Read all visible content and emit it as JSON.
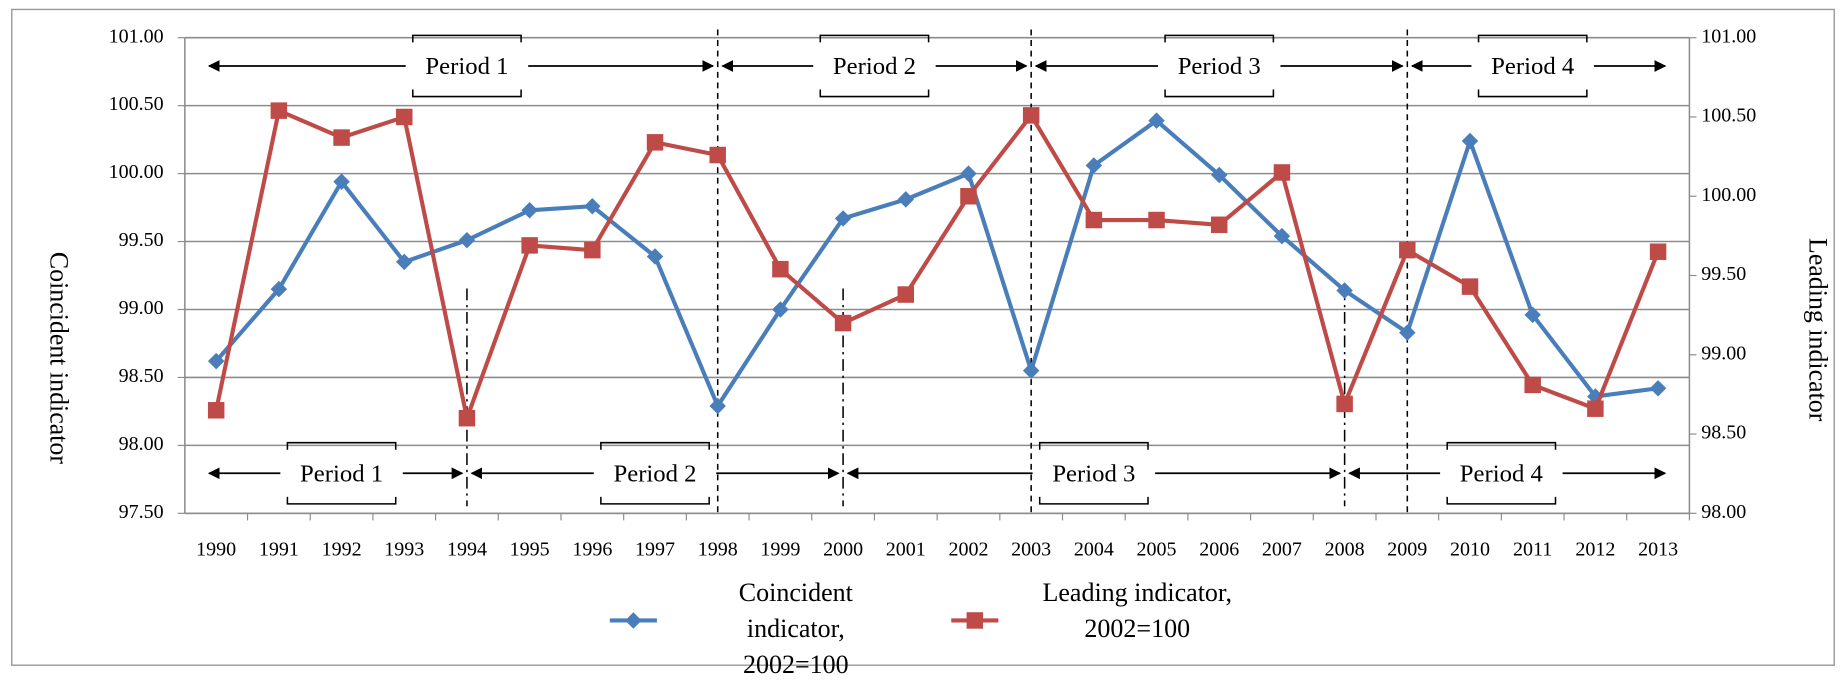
{
  "chart_data": {
    "type": "line",
    "categories": [
      "1990",
      "1991",
      "1992",
      "1993",
      "1994",
      "1995",
      "1996",
      "1997",
      "1998",
      "1999",
      "2000",
      "2001",
      "2002",
      "2003",
      "2004",
      "2005",
      "2006",
      "2007",
      "2008",
      "2009",
      "2010",
      "2011",
      "2012",
      "2013"
    ],
    "series": [
      {
        "name": "Coincident indicator, 2002=100",
        "color": "#4a7ebb",
        "marker": "diamond",
        "axis": "y",
        "values": [
          98.62,
          99.15,
          99.94,
          99.35,
          99.51,
          99.73,
          99.76,
          99.39,
          98.29,
          99.0,
          99.67,
          99.81,
          100.0,
          98.55,
          100.06,
          100.39,
          99.99,
          99.54,
          99.14,
          98.83,
          100.24,
          98.96,
          98.36,
          98.42
        ]
      },
      {
        "name": "Leading indicator, 2002=100",
        "color": "#be4b48",
        "marker": "square",
        "axis": "y2",
        "values": [
          98.65,
          100.54,
          100.37,
          100.5,
          98.6,
          99.69,
          99.66,
          100.34,
          100.26,
          99.54,
          99.2,
          99.38,
          100.0,
          100.51,
          99.85,
          99.85,
          99.82,
          100.15,
          98.69,
          99.66,
          99.43,
          98.81,
          98.66,
          99.65
        ]
      }
    ],
    "ylabel": "Coincident indicator",
    "y2label": "Leading  indicator",
    "ylim": [
      97.5,
      101
    ],
    "yticks": [
      {
        "value": 97.5,
        "label": "97.50"
      },
      {
        "value": 98,
        "label": "98.00"
      },
      {
        "value": 98.5,
        "label": "98.50"
      },
      {
        "value": 99,
        "label": "99.00"
      },
      {
        "value": 99.5,
        "label": "99.50"
      },
      {
        "value": 100,
        "label": "100.00"
      },
      {
        "value": 100.5,
        "label": "100.50"
      },
      {
        "value": 101,
        "label": "101.00"
      }
    ],
    "y2lim": [
      98,
      101
    ],
    "y2ticks": [
      {
        "value": 98,
        "label": "98.00"
      },
      {
        "value": 98.5,
        "label": "98.50"
      },
      {
        "value": 99,
        "label": "99.00"
      },
      {
        "value": 99.5,
        "label": "99.50"
      },
      {
        "value": 100,
        "label": "100.00"
      },
      {
        "value": 100.5,
        "label": "100.50"
      },
      {
        "value": 101,
        "label": "101.00"
      }
    ],
    "grid": true,
    "legend": "bottom",
    "top_periods": [
      {
        "label": "Period 1",
        "from": "1990",
        "to": "1998"
      },
      {
        "label": "Period 2",
        "from": "1998",
        "to": "2003"
      },
      {
        "label": "Period 3",
        "from": "2003",
        "to": "2009"
      },
      {
        "label": "Period 4",
        "from": "2009",
        "to": "2013"
      }
    ],
    "bottom_periods": [
      {
        "label": "Period 1",
        "from": "1990",
        "to": "1994"
      },
      {
        "label": "Period 2",
        "from": "1994",
        "to": "2000"
      },
      {
        "label": "Period 3",
        "from": "2000",
        "to": "2008"
      },
      {
        "label": "Period 4",
        "from": "2008",
        "to": "2013"
      }
    ]
  }
}
